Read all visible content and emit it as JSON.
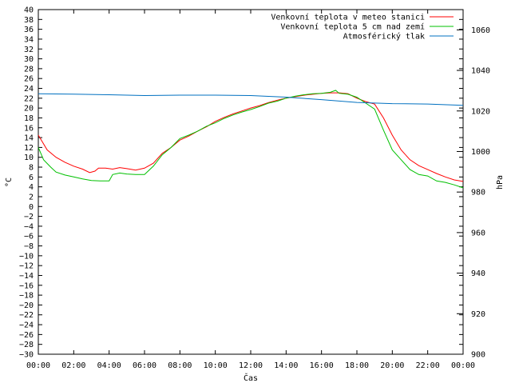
{
  "chart_data": {
    "type": "line",
    "xlabel": "Čas",
    "ylabel_left": "°C",
    "ylabel_right": "hPa",
    "x_ticks": [
      "00:00",
      "02:00",
      "04:00",
      "06:00",
      "08:00",
      "10:00",
      "12:00",
      "14:00",
      "16:00",
      "18:00",
      "20:00",
      "22:00",
      "00:00"
    ],
    "x_range_hours": [
      0,
      24
    ],
    "ylim_left": [
      -30,
      40
    ],
    "ylim_right": [
      900,
      1070
    ],
    "y_ticks_left": [
      40,
      38,
      36,
      34,
      32,
      30,
      28,
      26,
      24,
      22,
      20,
      18,
      16,
      14,
      12,
      10,
      8,
      6,
      4,
      2,
      0,
      -2,
      -4,
      -6,
      -8,
      -10,
      -12,
      -14,
      -16,
      -18,
      -20,
      -22,
      -24,
      -26,
      -28,
      -30
    ],
    "y_ticks_right": [
      1060,
      1040,
      1020,
      1000,
      980,
      960,
      940,
      920,
      900
    ],
    "legend_position": "top-right",
    "series": [
      {
        "name": "Venkovní teplota v meteo stanici",
        "axis": "left",
        "color": "#ff0000",
        "points": [
          [
            0,
            14.5
          ],
          [
            0.5,
            11.5
          ],
          [
            1,
            10
          ],
          [
            1.5,
            9
          ],
          [
            2,
            8.2
          ],
          [
            2.5,
            7.6
          ],
          [
            2.9,
            6.9
          ],
          [
            3.2,
            7.2
          ],
          [
            3.4,
            7.8
          ],
          [
            3.8,
            7.8
          ],
          [
            4.2,
            7.6
          ],
          [
            4.6,
            7.9
          ],
          [
            5.0,
            7.7
          ],
          [
            5.5,
            7.4
          ],
          [
            6.0,
            7.8
          ],
          [
            6.5,
            8.8
          ],
          [
            7.0,
            10.8
          ],
          [
            7.5,
            12.0
          ],
          [
            8.0,
            13.5
          ],
          [
            8.5,
            14.3
          ],
          [
            9.0,
            15.3
          ],
          [
            9.5,
            16.2
          ],
          [
            10.0,
            17.3
          ],
          [
            10.5,
            18.1
          ],
          [
            11.0,
            18.8
          ],
          [
            11.5,
            19.4
          ],
          [
            12.0,
            20.0
          ],
          [
            12.5,
            20.5
          ],
          [
            13.0,
            21.1
          ],
          [
            13.5,
            21.6
          ],
          [
            14.0,
            22.0
          ],
          [
            14.5,
            22.3
          ],
          [
            15.0,
            22.6
          ],
          [
            15.5,
            22.8
          ],
          [
            16.0,
            23.0
          ],
          [
            16.5,
            23.1
          ],
          [
            17.0,
            23.1
          ],
          [
            17.5,
            22.9
          ],
          [
            18.0,
            22.0
          ],
          [
            18.5,
            21.3
          ],
          [
            19.0,
            20.8
          ],
          [
            19.5,
            18.0
          ],
          [
            20.0,
            14.5
          ],
          [
            20.5,
            11.5
          ],
          [
            21.0,
            9.5
          ],
          [
            21.5,
            8.3
          ],
          [
            22.0,
            7.5
          ],
          [
            22.5,
            6.7
          ],
          [
            23.0,
            6.0
          ],
          [
            23.5,
            5.4
          ],
          [
            24.0,
            5.1
          ]
        ]
      },
      {
        "name": "Venkovní teplota 5 cm nad zemí",
        "axis": "left",
        "color": "#00c000",
        "points": [
          [
            0,
            12.0
          ],
          [
            0.3,
            9.5
          ],
          [
            0.7,
            8.0
          ],
          [
            1.0,
            7.0
          ],
          [
            1.5,
            6.4
          ],
          [
            2.0,
            6.0
          ],
          [
            2.5,
            5.6
          ],
          [
            3.0,
            5.3
          ],
          [
            3.5,
            5.2
          ],
          [
            4.0,
            5.2
          ],
          [
            4.2,
            6.5
          ],
          [
            4.6,
            6.8
          ],
          [
            5.0,
            6.6
          ],
          [
            5.5,
            6.5
          ],
          [
            6.0,
            6.5
          ],
          [
            6.5,
            8.2
          ],
          [
            7.0,
            10.5
          ],
          [
            7.5,
            12.0
          ],
          [
            8.0,
            13.8
          ],
          [
            8.5,
            14.5
          ],
          [
            9.0,
            15.3
          ],
          [
            9.5,
            16.3
          ],
          [
            10.0,
            17.0
          ],
          [
            10.5,
            17.9
          ],
          [
            11.0,
            18.6
          ],
          [
            11.5,
            19.2
          ],
          [
            12.0,
            19.7
          ],
          [
            12.5,
            20.3
          ],
          [
            13.0,
            21.0
          ],
          [
            13.5,
            21.4
          ],
          [
            14.0,
            22.0
          ],
          [
            14.5,
            22.4
          ],
          [
            15.0,
            22.7
          ],
          [
            15.5,
            22.9
          ],
          [
            16.0,
            23.0
          ],
          [
            16.5,
            23.2
          ],
          [
            16.8,
            23.6
          ],
          [
            17.0,
            23.0
          ],
          [
            17.5,
            22.8
          ],
          [
            18.0,
            22.2
          ],
          [
            18.5,
            21.0
          ],
          [
            19.0,
            19.8
          ],
          [
            19.5,
            15.5
          ],
          [
            20.0,
            11.5
          ],
          [
            20.5,
            9.5
          ],
          [
            21.0,
            7.5
          ],
          [
            21.5,
            6.5
          ],
          [
            22.0,
            6.2
          ],
          [
            22.5,
            5.2
          ],
          [
            23.0,
            4.9
          ],
          [
            23.5,
            4.4
          ],
          [
            24.0,
            3.8
          ]
        ]
      },
      {
        "name": "Atmosférický tlak",
        "axis": "right",
        "color": "#0070c0",
        "points": [
          [
            0,
            1028.5
          ],
          [
            2,
            1028.3
          ],
          [
            4,
            1028.0
          ],
          [
            6,
            1027.6
          ],
          [
            8,
            1027.8
          ],
          [
            10,
            1027.8
          ],
          [
            12,
            1027.6
          ],
          [
            14,
            1026.8
          ],
          [
            16,
            1025.6
          ],
          [
            18,
            1024.2
          ],
          [
            20,
            1023.6
          ],
          [
            22,
            1023.4
          ],
          [
            24,
            1022.8
          ]
        ]
      }
    ]
  }
}
